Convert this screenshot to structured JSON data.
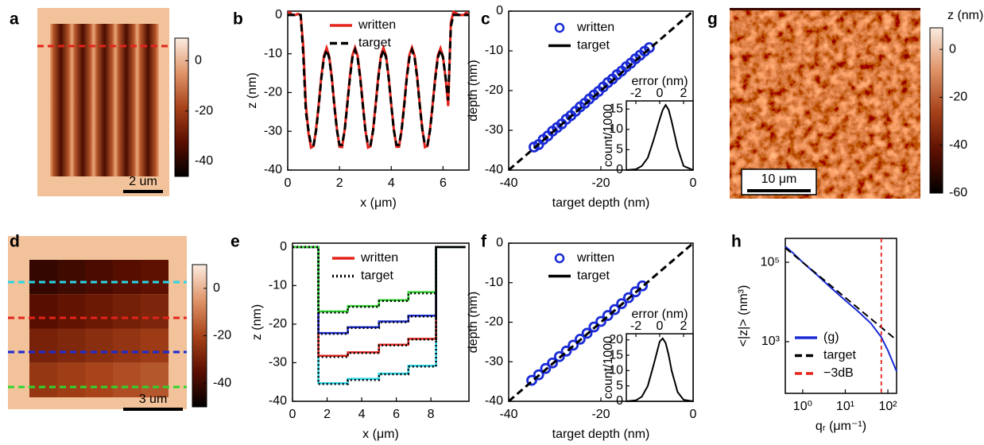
{
  "chart_data": [
    {
      "type": "image",
      "panel_label": "a",
      "clim": [
        -46,
        9
      ],
      "cticks": [
        0,
        -20,
        -40
      ],
      "scale_bar": "2 um",
      "line_colors": [
        "#e3241b"
      ]
    },
    {
      "type": "line",
      "panel_label": "b",
      "xlabel": "x (μm)",
      "ylabel": "z (nm)",
      "xlim": [
        0,
        7
      ],
      "xticks": [
        0,
        2,
        4,
        6
      ],
      "ylim": [
        -40,
        1
      ],
      "yticks": [
        0,
        -10,
        -20,
        -30,
        -40
      ],
      "x": [
        0,
        0.1,
        0.2,
        0.3,
        0.4,
        0.5,
        0.6,
        0.7,
        0.8,
        0.9,
        1,
        1.1,
        1.2,
        1.3,
        1.4,
        1.5,
        1.6,
        1.7,
        1.8,
        1.9,
        2,
        2.1,
        2.2,
        2.3,
        2.4,
        2.5,
        2.6,
        2.7,
        2.8,
        2.9,
        3,
        3.1,
        3.2,
        3.3,
        3.4,
        3.5,
        3.6,
        3.7,
        3.8,
        3.9,
        4,
        4.1,
        4.2,
        4.3,
        4.4,
        4.5,
        4.6,
        4.7,
        4.8,
        4.9,
        5,
        5.1,
        5.2,
        5.3,
        5.4,
        5.5,
        5.6,
        5.7,
        5.8,
        5.9,
        6,
        6.1,
        6.2,
        6.3,
        6.4,
        6.5,
        6.6,
        6.7,
        6.8,
        6.9,
        7
      ],
      "series": [
        {
          "name": "written",
          "color": "#e3241b",
          "values": [
            0.8,
            0.5,
            0,
            0,
            0.3,
            0,
            -8,
            -23,
            -30.5,
            -34.2,
            -33.8,
            -29.2,
            -22.8,
            -15.8,
            -10.5,
            -8.5,
            -10.6,
            -15.9,
            -23.0,
            -29.4,
            -34.0,
            -34.1,
            -29.5,
            -22.9,
            -15.9,
            -10.4,
            -8.4,
            -10.5,
            -15.8,
            -22.9,
            -29.6,
            -34.2,
            -33.9,
            -29.4,
            -22.8,
            -15.7,
            -10.4,
            -8.5,
            -10.6,
            -16.0,
            -23.1,
            -29.5,
            -34.0,
            -34.0,
            -29.6,
            -22.9,
            -15.8,
            -10.3,
            -8.4,
            -10.5,
            -15.9,
            -23.0,
            -29.4,
            -34.1,
            -33.8,
            -29.3,
            -22.8,
            -15.8,
            -10.4,
            -8.6,
            -10.8,
            -16.5,
            -23.5,
            -2,
            0.8,
            0.5,
            0,
            0,
            0,
            0.6,
            0
          ]
        },
        {
          "name": "target",
          "color": "#000000",
          "dash": "dash",
          "values": [
            0,
            0,
            0,
            0,
            0,
            0,
            -10,
            -25,
            -29.7,
            -33.5,
            -33.5,
            -29.7,
            -23.3,
            -16.3,
            -11.0,
            -9.0,
            -11.0,
            -16.3,
            -23.3,
            -29.7,
            -33.5,
            -33.5,
            -29.7,
            -23.3,
            -16.3,
            -11.0,
            -9.0,
            -11.0,
            -16.3,
            -23.3,
            -29.7,
            -33.5,
            -33.5,
            -29.7,
            -23.3,
            -16.3,
            -11.0,
            -9.0,
            -11.0,
            -16.3,
            -23.3,
            -29.7,
            -33.5,
            -33.5,
            -29.7,
            -23.3,
            -16.3,
            -11.0,
            -9.0,
            -11.0,
            -16.3,
            -23.3,
            -29.7,
            -33.5,
            -33.5,
            -29.7,
            -23.3,
            -16.3,
            -11.0,
            -9.0,
            -11.0,
            -16.3,
            -22,
            -3,
            0,
            0,
            0,
            0,
            0,
            0,
            0
          ]
        }
      ]
    },
    {
      "type": "scatter",
      "panel_label": "c",
      "xlabel": "target depth (nm)",
      "ylabel": "depth (nm)",
      "xlim": [
        -40,
        0
      ],
      "xticks": [
        -40,
        -20,
        0
      ],
      "ylim": [
        -40,
        0
      ],
      "yticks": [
        0,
        -10,
        -20,
        -30,
        -40
      ],
      "series": [
        {
          "name": "written",
          "color": "#1a2bd6",
          "marker": "o",
          "x": [
            -34.5,
            -33.5,
            -32.5,
            -31.5,
            -30.5,
            -29.5,
            -28.5,
            -27.5,
            -26.5,
            -25.5,
            -24.5,
            -23.5,
            -22.5,
            -21.5,
            -20.5,
            -19.5,
            -18.5,
            -17.5,
            -16.5,
            -15.5,
            -14.5,
            -13.5,
            -12.5,
            -11.5,
            -10.5,
            -9.5
          ],
          "values": [
            -34.2,
            -33.6,
            -32.3,
            -31.4,
            -30.2,
            -29.3,
            -28.4,
            -27.2,
            -26.3,
            -25.2,
            -24.1,
            -23.2,
            -22.1,
            -21.1,
            -20.2,
            -19.1,
            -18.0,
            -17.1,
            -16.0,
            -15.1,
            -14.0,
            -13.1,
            -12.0,
            -11.1,
            -10.1,
            -9.2
          ]
        },
        {
          "name": "target",
          "color": "#000000",
          "dash": "dash",
          "x": [
            -40,
            0
          ],
          "values": [
            -40,
            0
          ]
        }
      ],
      "inset": {
        "xlabel": "error (nm)",
        "ylabel": "count/1000",
        "xlim": [
          -2.8,
          2.8
        ],
        "xticks": [
          -2,
          0,
          2
        ],
        "ylim": [
          0,
          17
        ],
        "yticks": [
          0,
          5,
          10,
          15
        ],
        "x": [
          -2.8,
          -2,
          -1.5,
          -1,
          -0.5,
          0,
          0.25,
          0.5,
          0.75,
          1,
          1.5,
          2,
          2.8
        ],
        "values": [
          0,
          0.2,
          1,
          3,
          7.5,
          12.5,
          14.8,
          16,
          14.8,
          12,
          5.5,
          1,
          0
        ],
        "color": "#000000"
      }
    },
    {
      "type": "image",
      "panel_label": "g",
      "clim": [
        -60,
        9
      ],
      "cticks": [
        0,
        -20,
        -40,
        -60
      ],
      "colorbar_label": "z (nm)",
      "scale_bar": "10 μm"
    },
    {
      "type": "image",
      "panel_label": "d",
      "clim": [
        -50,
        10
      ],
      "cticks": [
        0,
        -20,
        -40
      ],
      "scale_bar": "3 um",
      "line_colors": [
        "#27d6e6",
        "#e3241b",
        "#1a2bd6",
        "#2ed62e"
      ]
    },
    {
      "type": "line",
      "panel_label": "e",
      "xlabel": "x (μm)",
      "ylabel": "z (nm)",
      "xlim": [
        0,
        10.2
      ],
      "xticks": [
        0,
        2,
        4,
        6,
        8
      ],
      "ylim": [
        -40,
        1
      ],
      "yticks": [
        0,
        -10,
        -20,
        -30,
        -40
      ],
      "x": [
        0,
        1.5,
        1.5,
        3.2,
        3.2,
        5,
        5,
        6.7,
        6.7,
        8.3,
        8.3,
        10
      ],
      "series": [
        {
          "name": "written",
          "color": "#e3241b",
          "profiles": [
            {
              "color": "#27d6e6",
              "values": [
                0,
                0,
                -35.3,
                -35.3,
                -34.2,
                -34.2,
                -32.8,
                -32.8,
                -30.8,
                -30.8,
                0,
                0
              ]
            },
            {
              "color": "#e3241b",
              "values": [
                0,
                0,
                -28.2,
                -28.2,
                -27.3,
                -27.3,
                -25.3,
                -25.3,
                -23.8,
                -23.8,
                0,
                0
              ]
            },
            {
              "color": "#1a2bd6",
              "values": [
                0,
                0,
                -22.3,
                -22.3,
                -20.8,
                -20.8,
                -19.3,
                -19.3,
                -17.8,
                -17.8,
                0,
                0
              ]
            },
            {
              "color": "#2ed62e",
              "values": [
                0,
                0,
                -16.7,
                -16.7,
                -15.3,
                -15.3,
                -13.8,
                -13.8,
                -11.7,
                -11.7,
                0,
                0
              ]
            }
          ]
        },
        {
          "name": "target",
          "color": "#000000",
          "dash": "dot",
          "profiles": [
            {
              "values": [
                0,
                0,
                -35.5,
                -35.5,
                -34.5,
                -34.5,
                -33,
                -33,
                -31,
                -31,
                0,
                0
              ]
            },
            {
              "values": [
                0,
                0,
                -28.5,
                -28.5,
                -27.5,
                -27.5,
                -25.5,
                -25.5,
                -24,
                -24,
                0,
                0
              ]
            },
            {
              "values": [
                0,
                0,
                -22.5,
                -22.5,
                -21,
                -21,
                -19.5,
                -19.5,
                -18,
                -18,
                0,
                0
              ]
            },
            {
              "values": [
                0,
                0,
                -17,
                -17,
                -15.5,
                -15.5,
                -14,
                -14,
                -12,
                -12,
                0,
                0
              ]
            }
          ]
        }
      ]
    },
    {
      "type": "scatter",
      "panel_label": "f",
      "xlabel": "target depth (nm)",
      "ylabel": "depth (nm)",
      "xlim": [
        -40,
        0
      ],
      "xticks": [
        -40,
        -20,
        0
      ],
      "ylim": [
        -40,
        0
      ],
      "yticks": [
        0,
        -10,
        -20,
        -30,
        -40
      ],
      "series": [
        {
          "name": "written",
          "color": "#1a2bd6",
          "marker": "o",
          "x": [
            -35,
            -33.5,
            -32,
            -30.5,
            -29,
            -27.5,
            -26,
            -24.5,
            -23,
            -21.5,
            -20,
            -18.5,
            -17,
            -15.5,
            -14,
            -12.5,
            -11
          ],
          "values": [
            -34.7,
            -33.3,
            -31.7,
            -30.3,
            -28.7,
            -27.3,
            -25.8,
            -24.3,
            -22.8,
            -21.2,
            -19.8,
            -18.3,
            -16.8,
            -15.3,
            -13.8,
            -12.3,
            -10.8
          ]
        },
        {
          "name": "target",
          "color": "#000000",
          "dash": "dash",
          "x": [
            -40,
            0
          ],
          "values": [
            -40,
            0
          ]
        }
      ],
      "inset": {
        "xlabel": "error (nm)",
        "ylabel": "count/1000",
        "xlim": [
          -2.8,
          2.8
        ],
        "xticks": [
          -2,
          0,
          2
        ],
        "ylim": [
          0,
          22
        ],
        "yticks": [
          0,
          5,
          10,
          15,
          20
        ],
        "x": [
          -2.8,
          -2,
          -1.5,
          -1,
          -0.5,
          0,
          0.25,
          0.5,
          0.75,
          1,
          1.5,
          2,
          2.8
        ],
        "values": [
          0,
          0.3,
          1.5,
          5,
          12,
          19.5,
          20.5,
          19,
          15,
          10,
          3,
          0.5,
          0
        ],
        "color": "#000000"
      }
    },
    {
      "type": "line",
      "panel_label": "h",
      "log": true,
      "xlabel": "qᵣ (μm⁻¹)",
      "ylabel": "<|z|> (nm³)",
      "xlim": [
        0.39,
        160
      ],
      "xticks": [
        {
          "value": 1,
          "label": "10⁰"
        },
        {
          "value": 10,
          "label": "10¹"
        },
        {
          "value": 100,
          "label": "10²"
        }
      ],
      "ylim": [
        50,
        400000
      ],
      "yticks": [
        {
          "value": 1000,
          "label": "10³"
        },
        {
          "value": 100000,
          "label": "10⁵"
        }
      ],
      "series": [
        {
          "name": "(g)",
          "color": "#1a2bd6",
          "x": [
            0.39,
            0.6,
            1,
            2,
            5,
            10,
            20,
            40,
            70,
            100,
            160
          ],
          "values": [
            250000,
            170000,
            100000,
            52000,
            21000,
            11000,
            5800,
            2900,
            1300,
            600,
            180
          ]
        },
        {
          "name": "target",
          "color": "#000000",
          "dash": "dash",
          "x": [
            0.39,
            160
          ],
          "values": [
            230000,
            1100
          ]
        },
        {
          "name": "−3dB",
          "color": "#e3241b",
          "dash": "dash",
          "vline": 70
        }
      ]
    }
  ]
}
